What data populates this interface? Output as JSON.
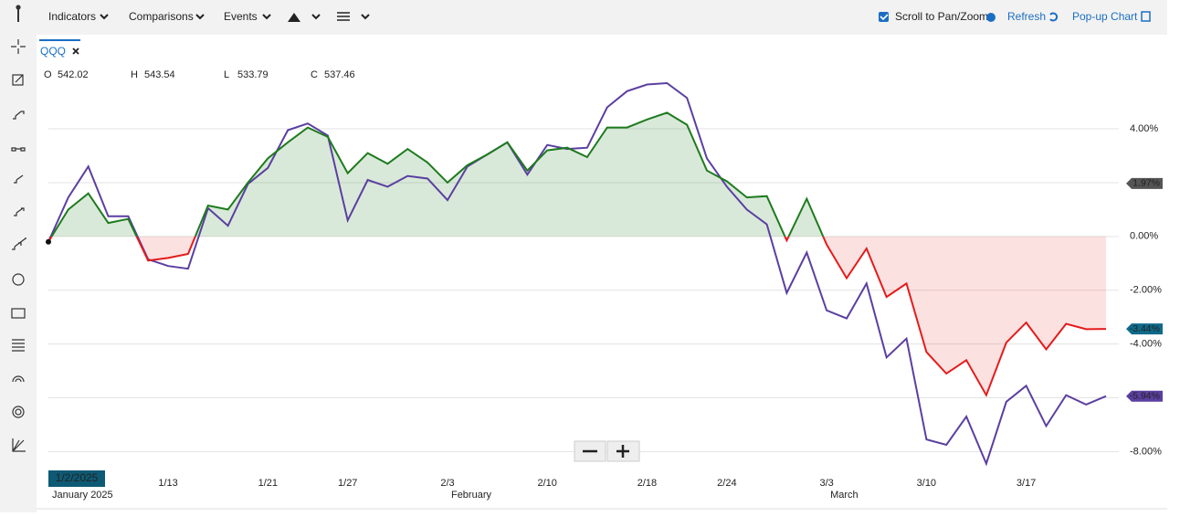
{
  "toolbar": {
    "items": [
      "Indicators",
      "Comparisons",
      "Events"
    ],
    "scroll_label": "Scroll to Pan/Zoom",
    "refresh": "Refresh",
    "popup": "Pop-up Chart"
  },
  "chart_data": {
    "type": "line",
    "symbol": "QQQ",
    "ohlc": [
      {
        "label": "O",
        "value": 542.02,
        "color": "#222"
      },
      {
        "label": "H",
        "value": 543.54,
        "color": "#1e7b1e"
      },
      {
        "label": "L",
        "value": 533.79,
        "color": "#d62020"
      },
      {
        "label": "C",
        "value": 537.46,
        "color": "#222"
      }
    ],
    "categories": [
      "1/2/2025",
      null,
      null,
      null,
      null,
      null,
      "1/13",
      null,
      null,
      null,
      null,
      "1/21",
      null,
      null,
      null,
      "1/27",
      null,
      null,
      null,
      null,
      "2/3",
      null,
      null,
      null,
      null,
      "2/10",
      null,
      null,
      null,
      null,
      "2/18",
      null,
      null,
      null,
      "2/24",
      null,
      null,
      null,
      null,
      "3/3",
      null,
      null,
      null,
      null,
      "3/10",
      null,
      null,
      null,
      null,
      "3/17",
      null,
      null,
      null,
      null
    ],
    "month_labels": [
      "January 2025",
      "February",
      "March"
    ],
    "series": [
      {
        "name": "QQQ",
        "color": "#1e7b1e",
        "negative_color": "#e41b1b",
        "tag_color": "#0e6a8a",
        "end_label": "-3.44%",
        "values": [
          -0.2,
          1.0,
          1.6,
          0.5,
          0.65,
          -0.9,
          -0.8,
          -0.65,
          1.15,
          1.0,
          2.0,
          2.9,
          3.5,
          4.05,
          3.7,
          2.35,
          3.1,
          2.7,
          3.25,
          2.75,
          2.0,
          2.65,
          3.05,
          3.5,
          2.45,
          3.2,
          3.3,
          2.95,
          4.05,
          4.05,
          4.35,
          4.6,
          4.15,
          2.45,
          2.05,
          1.45,
          1.5,
          -0.15,
          1.4,
          -0.3,
          -1.55,
          -0.45,
          -2.25,
          -1.75,
          -4.3,
          -5.1,
          -4.6,
          -5.9,
          -3.95,
          -3.2,
          -4.2,
          -3.25,
          -3.45,
          -3.44
        ]
      },
      {
        "color": "#5b3fa0",
        "tag_color": "#5b3fa0",
        "end_label": "-5.94%",
        "values": [
          -0.2,
          1.45,
          2.6,
          0.75,
          0.75,
          -0.85,
          -1.1,
          -1.2,
          1.05,
          0.4,
          1.95,
          2.55,
          3.95,
          4.2,
          3.75,
          0.6,
          2.1,
          1.85,
          2.25,
          2.15,
          1.35,
          2.6,
          3.05,
          3.5,
          2.3,
          3.4,
          3.25,
          3.3,
          4.8,
          5.4,
          5.65,
          5.7,
          5.15,
          2.9,
          1.85,
          1.0,
          0.45,
          -2.1,
          -0.6,
          -2.75,
          -3.05,
          -1.75,
          -4.5,
          -3.8,
          -7.55,
          -7.75,
          -6.7,
          -8.45,
          -6.15,
          -5.55,
          -7.05,
          -5.9,
          -6.25,
          -5.94
        ]
      }
    ],
    "reference_line": {
      "value": 1.97,
      "label": "1.97%",
      "color": "#555"
    },
    "ylim": [
      -8.7,
      7.5
    ],
    "yticks": [
      {
        "value": 4,
        "label": "4.00%"
      },
      {
        "value": 0,
        "label": "0.00%"
      },
      {
        "value": -2,
        "label": "-2.00%"
      },
      {
        "value": -4,
        "label": "-4.00%"
      },
      {
        "value": -8,
        "label": "-8.00%"
      }
    ],
    "ygrid": [
      4,
      2,
      0,
      -2,
      -4,
      -6,
      -8
    ]
  }
}
